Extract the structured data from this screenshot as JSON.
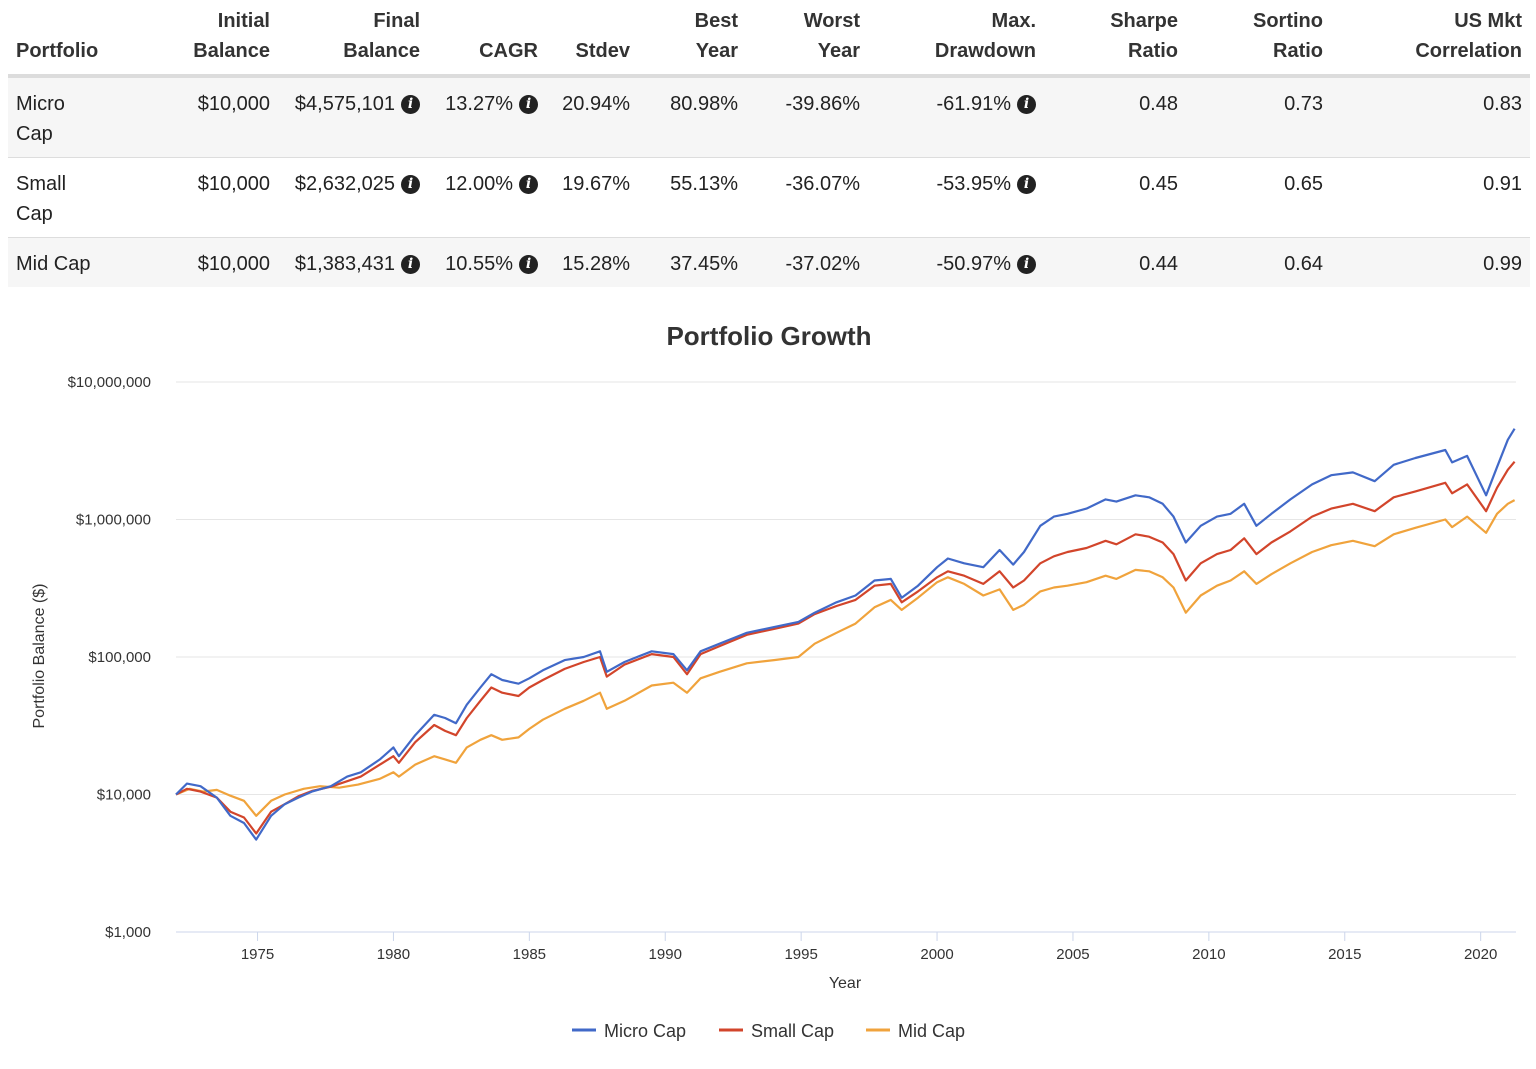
{
  "table": {
    "headers": [
      {
        "line1": "",
        "line2": "Portfolio"
      },
      {
        "line1": "Initial",
        "line2": "Balance"
      },
      {
        "line1": "Final",
        "line2": "Balance"
      },
      {
        "line1": "",
        "line2": "CAGR"
      },
      {
        "line1": "",
        "line2": "Stdev"
      },
      {
        "line1": "Best",
        "line2": "Year"
      },
      {
        "line1": "Worst",
        "line2": "Year"
      },
      {
        "line1": "Max.",
        "line2": "Drawdown"
      },
      {
        "line1": "Sharpe",
        "line2": "Ratio"
      },
      {
        "line1": "Sortino",
        "line2": "Ratio"
      },
      {
        "line1": "US Mkt",
        "line2": "Correlation"
      }
    ],
    "rows": [
      {
        "portfolio_line1": "Micro",
        "portfolio_line2": "Cap",
        "initial": "$10,000",
        "final": "$4,575,101",
        "cagr": "13.27%",
        "stdev": "20.94%",
        "best": "80.98%",
        "worst": "-39.86%",
        "drawdown": "-61.91%",
        "sharpe": "0.48",
        "sortino": "0.73",
        "corr": "0.83"
      },
      {
        "portfolio_line1": "Small",
        "portfolio_line2": "Cap",
        "initial": "$10,000",
        "final": "$2,632,025",
        "cagr": "12.00%",
        "stdev": "19.67%",
        "best": "55.13%",
        "worst": "-36.07%",
        "drawdown": "-53.95%",
        "sharpe": "0.45",
        "sortino": "0.65",
        "corr": "0.91"
      },
      {
        "portfolio_line1": "Mid Cap",
        "portfolio_line2": "",
        "initial": "$10,000",
        "final": "$1,383,431",
        "cagr": "10.55%",
        "stdev": "15.28%",
        "best": "37.45%",
        "worst": "-37.02%",
        "drawdown": "-50.97%",
        "sharpe": "0.44",
        "sortino": "0.64",
        "corr": "0.99"
      }
    ],
    "info_icon": "info-circle-icon"
  },
  "chart_data": {
    "type": "line",
    "title": "Portfolio Growth",
    "xlabel": "Year",
    "ylabel": "Portfolio Balance ($)",
    "yscale": "log",
    "ylim": [
      1000,
      10000000
    ],
    "xlim": [
      1972,
      2021.3
    ],
    "yticks": [
      {
        "value": 1000,
        "label": "$1,000"
      },
      {
        "value": 10000,
        "label": "$10,000"
      },
      {
        "value": 100000,
        "label": "$100,000"
      },
      {
        "value": 1000000,
        "label": "$1,000,000"
      },
      {
        "value": 10000000,
        "label": "$10,000,000"
      }
    ],
    "xticks": [
      1975,
      1980,
      1985,
      1990,
      1995,
      2000,
      2005,
      2010,
      2015,
      2020
    ],
    "grid": true,
    "legend_position": "bottom-center",
    "series": [
      {
        "name": "Micro Cap",
        "color": "#4169c8",
        "points": [
          [
            1972,
            10000
          ],
          [
            1972.4,
            12000
          ],
          [
            1972.9,
            11500
          ],
          [
            1973.5,
            9500
          ],
          [
            1974,
            7000
          ],
          [
            1974.5,
            6200
          ],
          [
            1974.95,
            4700
          ],
          [
            1975.5,
            7000
          ],
          [
            1976,
            8500
          ],
          [
            1976.5,
            9500
          ],
          [
            1977,
            10500
          ],
          [
            1977.7,
            11500
          ],
          [
            1978.3,
            13500
          ],
          [
            1978.8,
            14500
          ],
          [
            1979.5,
            18000
          ],
          [
            1980,
            22000
          ],
          [
            1980.2,
            19000
          ],
          [
            1980.8,
            27000
          ],
          [
            1981.5,
            38000
          ],
          [
            1981.9,
            36000
          ],
          [
            1982.3,
            33000
          ],
          [
            1982.7,
            45000
          ],
          [
            1983.2,
            60000
          ],
          [
            1983.6,
            75000
          ],
          [
            1984,
            68000
          ],
          [
            1984.6,
            64000
          ],
          [
            1985,
            70000
          ],
          [
            1985.5,
            80000
          ],
          [
            1986.3,
            95000
          ],
          [
            1987,
            100000
          ],
          [
            1987.6,
            110000
          ],
          [
            1987.85,
            78000
          ],
          [
            1988.5,
            92000
          ],
          [
            1989.5,
            110000
          ],
          [
            1990.3,
            105000
          ],
          [
            1990.8,
            80000
          ],
          [
            1991.3,
            110000
          ],
          [
            1992,
            125000
          ],
          [
            1993,
            150000
          ],
          [
            1994,
            165000
          ],
          [
            1994.9,
            180000
          ],
          [
            1995.5,
            210000
          ],
          [
            1996.3,
            250000
          ],
          [
            1997,
            280000
          ],
          [
            1997.7,
            360000
          ],
          [
            1998.3,
            370000
          ],
          [
            1998.7,
            270000
          ],
          [
            1999.3,
            330000
          ],
          [
            2000,
            450000
          ],
          [
            2000.4,
            520000
          ],
          [
            2001,
            480000
          ],
          [
            2001.7,
            450000
          ],
          [
            2002.3,
            600000
          ],
          [
            2002.8,
            470000
          ],
          [
            2003.2,
            580000
          ],
          [
            2003.8,
            900000
          ],
          [
            2004.3,
            1050000
          ],
          [
            2004.8,
            1100000
          ],
          [
            2005.5,
            1200000
          ],
          [
            2006.2,
            1400000
          ],
          [
            2006.6,
            1350000
          ],
          [
            2007.3,
            1500000
          ],
          [
            2007.8,
            1450000
          ],
          [
            2008.3,
            1300000
          ],
          [
            2008.7,
            1050000
          ],
          [
            2009.15,
            680000
          ],
          [
            2009.7,
            900000
          ],
          [
            2010.3,
            1050000
          ],
          [
            2010.8,
            1100000
          ],
          [
            2011.3,
            1300000
          ],
          [
            2011.75,
            900000
          ],
          [
            2012.3,
            1100000
          ],
          [
            2013,
            1400000
          ],
          [
            2013.8,
            1800000
          ],
          [
            2014.5,
            2100000
          ],
          [
            2015.3,
            2200000
          ],
          [
            2016.1,
            1900000
          ],
          [
            2016.8,
            2500000
          ],
          [
            2017.6,
            2800000
          ],
          [
            2018.7,
            3200000
          ],
          [
            2018.95,
            2600000
          ],
          [
            2019.5,
            2900000
          ],
          [
            2020.2,
            1500000
          ],
          [
            2020.6,
            2400000
          ],
          [
            2021,
            3800000
          ],
          [
            2021.25,
            4575101
          ]
        ]
      },
      {
        "name": "Small Cap",
        "color": "#d2452b",
        "points": [
          [
            1972,
            10000
          ],
          [
            1972.4,
            11000
          ],
          [
            1972.9,
            10500
          ],
          [
            1973.5,
            9500
          ],
          [
            1974,
            7500
          ],
          [
            1974.5,
            6800
          ],
          [
            1974.95,
            5200
          ],
          [
            1975.5,
            7500
          ],
          [
            1976,
            8500
          ],
          [
            1976.5,
            9700
          ],
          [
            1977,
            10600
          ],
          [
            1977.7,
            11400
          ],
          [
            1978.3,
            12500
          ],
          [
            1978.8,
            13500
          ],
          [
            1979.5,
            16500
          ],
          [
            1980,
            19000
          ],
          [
            1980.2,
            17000
          ],
          [
            1980.8,
            24000
          ],
          [
            1981.5,
            32000
          ],
          [
            1981.9,
            29000
          ],
          [
            1982.3,
            27000
          ],
          [
            1982.7,
            36000
          ],
          [
            1983.2,
            48000
          ],
          [
            1983.6,
            60000
          ],
          [
            1984,
            55000
          ],
          [
            1984.6,
            52000
          ],
          [
            1985,
            60000
          ],
          [
            1985.5,
            68000
          ],
          [
            1986.3,
            82000
          ],
          [
            1987,
            92000
          ],
          [
            1987.6,
            100000
          ],
          [
            1987.85,
            72000
          ],
          [
            1988.5,
            88000
          ],
          [
            1989.5,
            105000
          ],
          [
            1990.3,
            100000
          ],
          [
            1990.8,
            75000
          ],
          [
            1991.3,
            105000
          ],
          [
            1992,
            120000
          ],
          [
            1993,
            145000
          ],
          [
            1994,
            160000
          ],
          [
            1994.9,
            175000
          ],
          [
            1995.5,
            205000
          ],
          [
            1996.3,
            235000
          ],
          [
            1997,
            260000
          ],
          [
            1997.7,
            330000
          ],
          [
            1998.3,
            340000
          ],
          [
            1998.7,
            250000
          ],
          [
            1999.3,
            300000
          ],
          [
            2000,
            380000
          ],
          [
            2000.4,
            420000
          ],
          [
            2001,
            390000
          ],
          [
            2001.7,
            340000
          ],
          [
            2002.3,
            420000
          ],
          [
            2002.8,
            320000
          ],
          [
            2003.2,
            360000
          ],
          [
            2003.8,
            480000
          ],
          [
            2004.3,
            540000
          ],
          [
            2004.8,
            580000
          ],
          [
            2005.5,
            620000
          ],
          [
            2006.2,
            700000
          ],
          [
            2006.6,
            660000
          ],
          [
            2007.3,
            780000
          ],
          [
            2007.8,
            750000
          ],
          [
            2008.3,
            680000
          ],
          [
            2008.7,
            560000
          ],
          [
            2009.15,
            360000
          ],
          [
            2009.7,
            480000
          ],
          [
            2010.3,
            560000
          ],
          [
            2010.8,
            600000
          ],
          [
            2011.3,
            730000
          ],
          [
            2011.75,
            560000
          ],
          [
            2012.3,
            680000
          ],
          [
            2013,
            820000
          ],
          [
            2013.8,
            1050000
          ],
          [
            2014.5,
            1200000
          ],
          [
            2015.3,
            1300000
          ],
          [
            2016.1,
            1150000
          ],
          [
            2016.8,
            1450000
          ],
          [
            2017.6,
            1600000
          ],
          [
            2018.7,
            1850000
          ],
          [
            2018.95,
            1550000
          ],
          [
            2019.5,
            1800000
          ],
          [
            2020.2,
            1150000
          ],
          [
            2020.6,
            1700000
          ],
          [
            2021,
            2300000
          ],
          [
            2021.25,
            2632025
          ]
        ]
      },
      {
        "name": "Mid Cap",
        "color": "#f0a33c",
        "points": [
          [
            1972,
            10000
          ],
          [
            1972.5,
            11000
          ],
          [
            1973,
            10500
          ],
          [
            1973.5,
            10800
          ],
          [
            1974,
            9800
          ],
          [
            1974.5,
            9000
          ],
          [
            1974.95,
            7000
          ],
          [
            1975.5,
            9000
          ],
          [
            1976,
            10000
          ],
          [
            1976.7,
            11000
          ],
          [
            1977.3,
            11500
          ],
          [
            1978,
            11200
          ],
          [
            1978.7,
            11800
          ],
          [
            1979.5,
            13000
          ],
          [
            1980,
            14500
          ],
          [
            1980.2,
            13500
          ],
          [
            1980.8,
            16500
          ],
          [
            1981.5,
            19000
          ],
          [
            1981.9,
            18000
          ],
          [
            1982.3,
            17000
          ],
          [
            1982.7,
            22000
          ],
          [
            1983.2,
            25000
          ],
          [
            1983.6,
            27000
          ],
          [
            1984,
            25000
          ],
          [
            1984.6,
            26000
          ],
          [
            1985,
            30000
          ],
          [
            1985.5,
            35000
          ],
          [
            1986.3,
            42000
          ],
          [
            1987,
            48000
          ],
          [
            1987.6,
            55000
          ],
          [
            1987.85,
            42000
          ],
          [
            1988.5,
            48000
          ],
          [
            1989.5,
            62000
          ],
          [
            1990.3,
            65000
          ],
          [
            1990.8,
            55000
          ],
          [
            1991.3,
            70000
          ],
          [
            1992,
            78000
          ],
          [
            1993,
            90000
          ],
          [
            1994,
            95000
          ],
          [
            1994.9,
            100000
          ],
          [
            1995.5,
            125000
          ],
          [
            1996.3,
            150000
          ],
          [
            1997,
            175000
          ],
          [
            1997.7,
            230000
          ],
          [
            1998.3,
            260000
          ],
          [
            1998.7,
            220000
          ],
          [
            1999.3,
            270000
          ],
          [
            2000,
            350000
          ],
          [
            2000.4,
            380000
          ],
          [
            2001,
            340000
          ],
          [
            2001.7,
            280000
          ],
          [
            2002.3,
            310000
          ],
          [
            2002.8,
            220000
          ],
          [
            2003.2,
            240000
          ],
          [
            2003.8,
            300000
          ],
          [
            2004.3,
            320000
          ],
          [
            2004.8,
            330000
          ],
          [
            2005.5,
            350000
          ],
          [
            2006.2,
            390000
          ],
          [
            2006.6,
            370000
          ],
          [
            2007.3,
            430000
          ],
          [
            2007.8,
            420000
          ],
          [
            2008.3,
            380000
          ],
          [
            2008.7,
            320000
          ],
          [
            2009.15,
            210000
          ],
          [
            2009.7,
            280000
          ],
          [
            2010.3,
            330000
          ],
          [
            2010.8,
            360000
          ],
          [
            2011.3,
            420000
          ],
          [
            2011.75,
            340000
          ],
          [
            2012.3,
            400000
          ],
          [
            2013,
            480000
          ],
          [
            2013.8,
            580000
          ],
          [
            2014.5,
            650000
          ],
          [
            2015.3,
            700000
          ],
          [
            2016.1,
            640000
          ],
          [
            2016.8,
            780000
          ],
          [
            2017.6,
            870000
          ],
          [
            2018.7,
            1000000
          ],
          [
            2018.95,
            880000
          ],
          [
            2019.5,
            1050000
          ],
          [
            2020.2,
            800000
          ],
          [
            2020.6,
            1100000
          ],
          [
            2021,
            1300000
          ],
          [
            2021.25,
            1383431
          ]
        ]
      }
    ]
  }
}
